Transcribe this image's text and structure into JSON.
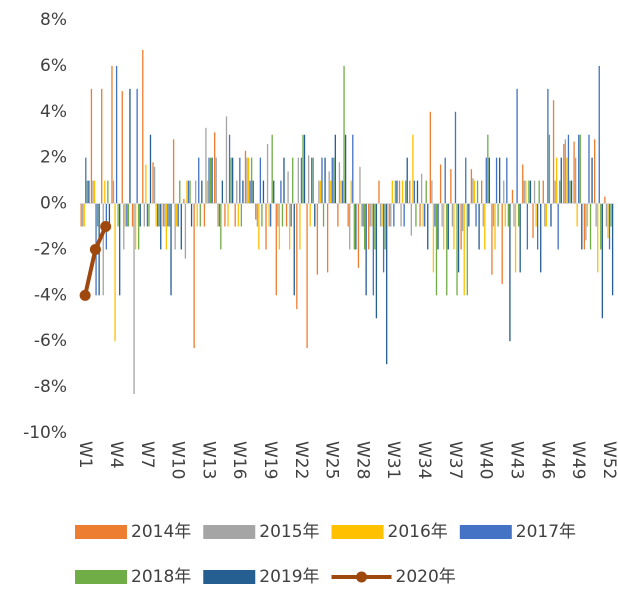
{
  "chart_data": {
    "type": "bar",
    "categories": [
      "W1",
      null,
      null,
      "W4",
      null,
      null,
      "W7",
      null,
      null,
      "W10",
      null,
      null,
      "W13",
      null,
      null,
      "W16",
      null,
      null,
      "W19",
      null,
      null,
      "W22",
      null,
      null,
      "W25",
      null,
      null,
      "W28",
      null,
      null,
      "W31",
      null,
      null,
      "W34",
      null,
      null,
      "W37",
      null,
      null,
      "W40",
      null,
      null,
      "W43",
      null,
      null,
      "W46",
      null,
      null,
      "W49",
      null,
      null,
      "W52"
    ],
    "series": [
      {
        "name": "2014年",
        "color": "#ed7d31",
        "values": [
          -1,
          5,
          5,
          6,
          4.9,
          -1,
          6.7,
          1.8,
          -1,
          2.8,
          0.2,
          -6.3,
          -1,
          3.1,
          -1,
          -1,
          2.3,
          -0.7,
          -2,
          -4,
          -1,
          -4.6,
          -6.3,
          -3.1,
          -3,
          -1,
          -1,
          -2.8,
          -2,
          1,
          -1,
          1,
          1,
          -1,
          4,
          1.7,
          1.5,
          -2,
          1.5,
          1,
          -3.1,
          -3.5,
          0.6,
          1.7,
          -1.5,
          1,
          4.5,
          2.6,
          2.7,
          -2,
          2.8,
          0.3
        ]
      },
      {
        "name": "2015年",
        "color": "#a5a5a5",
        "values": [
          -1,
          1,
          -4,
          1,
          -2,
          -8.3,
          -1,
          1.6,
          -1,
          -2,
          -2.4,
          1,
          3.3,
          2,
          3.8,
          1,
          2,
          -1,
          2.6,
          -1,
          1.4,
          2,
          2.1,
          1,
          1.4,
          1.8,
          -2,
          1.6,
          -1,
          -1,
          -1,
          -1,
          -1.4,
          1.3,
          1,
          -1,
          -1,
          -1.2,
          1.1,
          -1,
          -1,
          1,
          -1,
          1,
          1,
          -1,
          1,
          2.8,
          2,
          -1.6,
          -1,
          -1
        ]
      },
      {
        "name": "2016年",
        "color": "#ffc000",
        "values": [
          -1,
          1,
          1,
          -6,
          -1,
          -2,
          1.7,
          -1,
          -2,
          -1,
          1,
          -1,
          1,
          -1,
          -1,
          -1,
          2,
          -2,
          -1,
          -2,
          -2,
          -2,
          -1,
          1,
          1,
          1,
          1,
          -1,
          -1,
          -1,
          1,
          1,
          3,
          -1,
          -3,
          -2,
          -2,
          -4,
          1,
          -2,
          -2,
          -1,
          -3,
          1,
          -1,
          -1,
          2,
          2,
          -1,
          -1,
          -3,
          -1.5
        ]
      },
      {
        "name": "2017年",
        "color": "#4472c4",
        "values": [
          2,
          -4,
          -2,
          6,
          -1,
          5,
          -1,
          -1,
          -1,
          -1,
          1,
          2,
          2,
          -1,
          3,
          2,
          1,
          2,
          -1,
          1,
          -1,
          2,
          2,
          2,
          2,
          1,
          3,
          -1,
          -4,
          -3,
          -1,
          -1,
          1,
          -1,
          -1,
          2,
          4,
          2,
          -1,
          2,
          2,
          2,
          5,
          -2,
          -2,
          5,
          -2,
          3,
          3,
          3,
          6,
          -2
        ]
      },
      {
        "name": "2018年",
        "color": "#70ad47",
        "values": [
          1,
          -1,
          1,
          -1,
          -1,
          -2,
          -1,
          -1,
          -1,
          1,
          1,
          -1,
          2,
          -2,
          2,
          -1,
          2,
          -1,
          3,
          -1,
          2,
          3,
          2,
          -1,
          2,
          6,
          -2,
          -2,
          -2,
          -2,
          1,
          1,
          -1,
          1,
          -4,
          -4,
          -4,
          -4,
          1,
          3,
          -1,
          -1,
          -1,
          1,
          1,
          3,
          1,
          1,
          3,
          -2,
          -2,
          -1
        ]
      },
      {
        "name": "2019年",
        "color": "#255e91",
        "values": [
          1,
          -4,
          -1,
          -4,
          5,
          -1,
          3,
          -2,
          -4,
          -2,
          -1,
          1,
          2,
          1,
          2,
          1,
          1,
          1,
          1,
          2,
          -4,
          3,
          -1,
          2,
          3,
          3,
          -2,
          -4,
          -5,
          -7,
          1,
          2,
          1,
          -2,
          -2,
          -2,
          -3,
          -1,
          -2,
          2,
          2,
          -6,
          -3,
          1,
          -3,
          -1,
          2,
          1,
          -2,
          2,
          -5,
          -4
        ]
      },
      {
        "name": "2020年",
        "color": "#9e480e",
        "type": "line",
        "values": [
          -4,
          -2,
          -1,
          null,
          null,
          null,
          null,
          null,
          null,
          null,
          null,
          null,
          null,
          null,
          null,
          null,
          null,
          null,
          null,
          null,
          null,
          null,
          null,
          null,
          null,
          null,
          null,
          null,
          null,
          null,
          null,
          null,
          null,
          null,
          null,
          null,
          null,
          null,
          null,
          null,
          null,
          null,
          null,
          null,
          null,
          null,
          null,
          null,
          null,
          null,
          null,
          null
        ]
      }
    ],
    "ylim": [
      -10,
      8
    ],
    "yticks": [
      {
        "value": -10,
        "label": "-10%"
      },
      {
        "value": -8,
        "label": "-8%"
      },
      {
        "value": -6,
        "label": "-6%"
      },
      {
        "value": -4,
        "label": "-4%"
      },
      {
        "value": -2,
        "label": "-2%"
      },
      {
        "value": 0,
        "label": "0%"
      },
      {
        "value": 2,
        "label": "2%"
      },
      {
        "value": 4,
        "label": "4%"
      },
      {
        "value": 6,
        "label": "6%"
      },
      {
        "value": 8,
        "label": "8%"
      }
    ],
    "legend": "bottom"
  }
}
